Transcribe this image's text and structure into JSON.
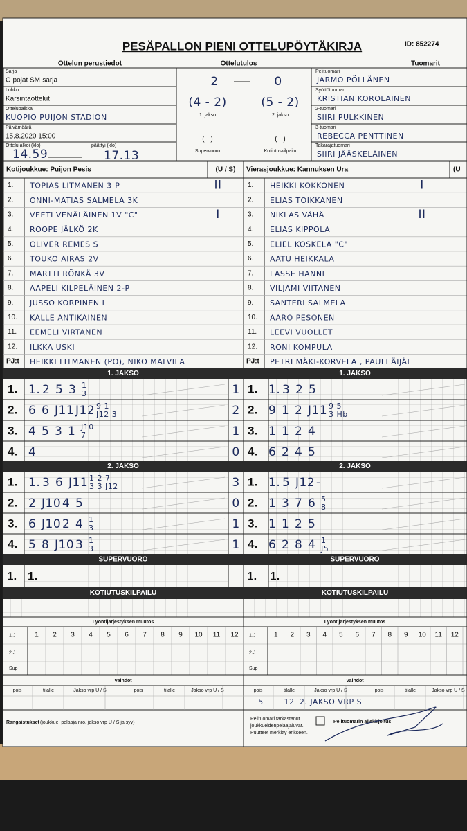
{
  "header": {
    "title": "PESÄPALLON PIENI OTTELUPÖYTÄKIRJA",
    "id": "ID: 852274",
    "sections": [
      "Ottelun perustiedot",
      "Ottelutulos",
      "Tuomarit"
    ]
  },
  "match_info": [
    {
      "label": "Sarja",
      "value": "C-pojat SM-sarja"
    },
    {
      "label": "Lohko",
      "value": "Karsintaottelut"
    },
    {
      "label": "Ottelupaikka",
      "value": "KUOPIO PUIJON STADION"
    },
    {
      "label": "Päivämäärä",
      "value": "15.8.2020 15:00"
    }
  ],
  "times": {
    "start_label": "Ottelu alkoi (klo)",
    "start": "14.59",
    "end_label": "päättyi (klo)",
    "end": "17.13"
  },
  "result": {
    "home": "2",
    "away": "0",
    "periods": [
      {
        "score": "(4 - 2)",
        "label": "1. jakso"
      },
      {
        "score": "(5 - 2)",
        "label": "2. jakso"
      }
    ],
    "extras": [
      {
        "score": "( - )",
        "label": "Supervuoro"
      },
      {
        "score": "( - )",
        "label": "Kotiutuskilpailu"
      }
    ]
  },
  "referees": [
    {
      "label": "Pelituomari",
      "name": "JARMO PÖLLÄNEN"
    },
    {
      "label": "Syöttötuomari",
      "name": "KRISTIAN KOROLAINEN"
    },
    {
      "label": "2-tuomari",
      "name": "SIIRI PULKKINEN"
    },
    {
      "label": "3-tuomari",
      "name": "REBECCA PENTTINEN"
    },
    {
      "label": "Takarajatuomari",
      "name": "SIIRI JÄÄSKELÄINEN"
    }
  ],
  "teams": [
    {
      "title": "Kotijoukkue: Puijon Pesis",
      "us_label": "(U / S)",
      "players": [
        {
          "no": "1.",
          "name": "TOPIAS LITMANEN 3-P",
          "mark": "II"
        },
        {
          "no": "2.",
          "name": "ONNI-MATIAS SALMELA 3K"
        },
        {
          "no": "3.",
          "name": "VEETI VENÄLÄINEN 1V \"C\"",
          "mark": "I"
        },
        {
          "no": "4.",
          "name": "ROOPE JÄLKÖ 2K"
        },
        {
          "no": "5.",
          "name": "OLIVER REMES S"
        },
        {
          "no": "6.",
          "name": "TOUKO AIRAS 2V"
        },
        {
          "no": "7.",
          "name": "MARTTI RÖNKÄ 3V"
        },
        {
          "no": "8.",
          "name": "AAPELI KILPELÄINEN 2-P"
        },
        {
          "no": "9.",
          "name": "JUSSO KORPINEN L"
        },
        {
          "no": "10.",
          "name": "KALLE ANTIKAINEN"
        },
        {
          "no": "11.",
          "name": "EEMELI VIRTANEN"
        },
        {
          "no": "12.",
          "name": "ILKKA USKI"
        }
      ],
      "pj_label": "PJ:t",
      "pj": "HEIKKI LITMANEN (PO), NIKO MALVILA"
    },
    {
      "title": "Vierasjoukkue: Kannuksen Ura",
      "us_label": "(U",
      "players": [
        {
          "no": "1.",
          "name": "HEIKKI KOKKONEN",
          "mark": "I"
        },
        {
          "no": "2.",
          "name": "ELIAS TOIKKANEN"
        },
        {
          "no": "3.",
          "name": "NIKLAS VÄHÄ",
          "mark": "II"
        },
        {
          "no": "4.",
          "name": "ELIAS KIPPOLA"
        },
        {
          "no": "5.",
          "name": "ELIEL KOSKELA \"C\""
        },
        {
          "no": "6.",
          "name": "AATU HEIKKALA"
        },
        {
          "no": "7.",
          "name": "LASSE HANNI"
        },
        {
          "no": "8.",
          "name": "VILJAMI VIITANEN"
        },
        {
          "no": "9.",
          "name": "SANTERI SALMELA"
        },
        {
          "no": "10.",
          "name": "AARO PESONEN"
        },
        {
          "no": "11.",
          "name": "LEEVI VUOLLET"
        },
        {
          "no": "12.",
          "name": "RONI KOMPULA"
        }
      ],
      "pj_label": "PJ:t",
      "pj": "PETRI MÄKI-KORVELA , PAULI ÄIJÄL"
    }
  ],
  "periods": [
    {
      "title": "1. JAKSO",
      "home": [
        {
          "no": "1.",
          "marks": [
            "1.",
            "2",
            "5",
            "3",
            {
              "top": "1",
              "bottom": "3"
            }
          ],
          "runs": "1"
        },
        {
          "no": "2.",
          "marks": [
            "6",
            "6",
            "J11",
            "J12",
            {
              "top": "9 1",
              "bottom": "J12 3"
            }
          ],
          "runs": "2"
        },
        {
          "no": "3.",
          "marks": [
            "4",
            "5",
            "3",
            "1",
            {
              "top": "J10",
              "bottom": "7"
            }
          ],
          "runs": "1"
        },
        {
          "no": "4.",
          "marks": [
            "4"
          ],
          "runs": "0"
        }
      ],
      "away": [
        {
          "no": "1.",
          "marks": [
            "1.",
            "3",
            "2",
            "5"
          ]
        },
        {
          "no": "2.",
          "marks": [
            "9",
            "1",
            "2",
            "J11",
            {
              "top": "9 5",
              "bottom": "3 Hb"
            }
          ]
        },
        {
          "no": "3.",
          "marks": [
            "1",
            "1",
            "2",
            "4"
          ]
        },
        {
          "no": "4.",
          "marks": [
            "6",
            "2",
            "4",
            "5"
          ]
        }
      ]
    },
    {
      "title": "2. JAKSO",
      "home": [
        {
          "no": "1.",
          "marks": [
            "1.",
            "3",
            "6",
            "J11",
            {
              "top": "1 2 7",
              "bottom": "3 3 J12"
            }
          ],
          "runs": "3"
        },
        {
          "no": "2.",
          "marks": [
            "2",
            "J10",
            "4",
            "5"
          ],
          "runs": "0"
        },
        {
          "no": "3.",
          "marks": [
            "6",
            "J10",
            "2",
            "4",
            {
              "top": "1",
              "bottom": "3"
            }
          ],
          "runs": "1"
        },
        {
          "no": "4.",
          "marks": [
            "5",
            "8",
            "J10",
            "3",
            {
              "top": "1",
              "bottom": "3"
            }
          ],
          "runs": "1"
        }
      ],
      "away": [
        {
          "no": "1.",
          "marks": [
            "1.",
            "5",
            "J12",
            "-"
          ]
        },
        {
          "no": "2.",
          "marks": [
            "1",
            "3",
            "7",
            "6",
            {
              "top": "5",
              "bottom": "8"
            }
          ]
        },
        {
          "no": "3.",
          "marks": [
            "1",
            "1",
            "2",
            "5"
          ]
        },
        {
          "no": "4.",
          "marks": [
            "6",
            "2",
            "8",
            "4",
            {
              "top": "1",
              "bottom": "J5"
            }
          ]
        }
      ]
    }
  ],
  "supervuoro": {
    "title": "SUPERVUORO",
    "row": [
      "1.",
      "1."
    ]
  },
  "kotiutus": {
    "title": "KOTIUTUSKILPAILU"
  },
  "lineup": {
    "title": "Lyöntijärjestyksen muutos",
    "rows": [
      "1.J",
      "2.J",
      "Sup"
    ],
    "columns": [
      "1",
      "2",
      "3",
      "4",
      "5",
      "6",
      "7",
      "8",
      "9",
      "10",
      "11",
      "12"
    ]
  },
  "subs": {
    "title": "Vaihdot",
    "columns": [
      "pois",
      "tilalle",
      "Jakso vrp U / S"
    ],
    "away_entry": [
      "5",
      "12",
      "2. JAKSO VRP S"
    ]
  },
  "footer": {
    "penalties": "Rangaistukset",
    "penalties_note": "(joukkue, pelaaja nro, jakso vrp U / S ja syy)",
    "check": [
      "Pelituomari tarkastanut",
      "joukkueidenpelaajaluvat.",
      "Puutteet merkitty erikseen."
    ],
    "signature": "Pelituomarin allekirjoitus"
  }
}
